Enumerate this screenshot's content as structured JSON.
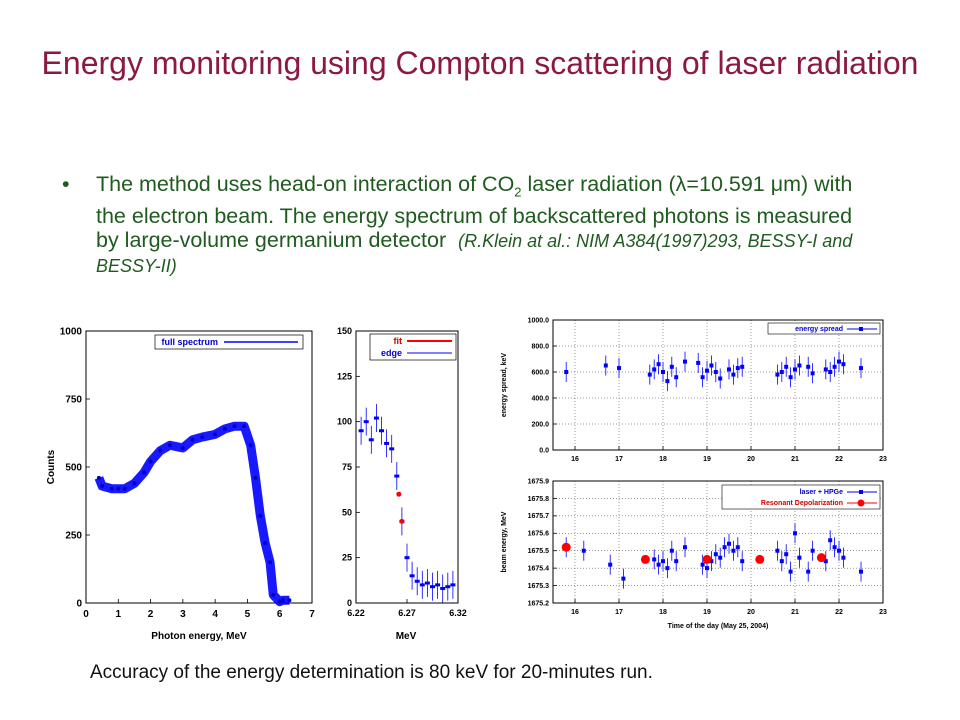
{
  "title": "Energy monitoring using Compton scattering of laser radiation",
  "bullet": {
    "marker": "•",
    "text_before_sub": "The method uses head-on interaction of CO",
    "sub": "2",
    "text_after_sub": " laser radiation (λ=10.591 μm) with the electron beam. The energy spectrum of backscattered photons is measured by large-volume germanium detector",
    "reference": "(R.Klein at al.: NIM A384(1997)293, BESSY-I and BESSY-II)"
  },
  "caption": "Accuracy of the energy determination is 80 keV for 20-minutes run.",
  "chart_data": [
    {
      "type": "line",
      "xlabel": "Photon energy, MeV",
      "ylabel": "Counts",
      "xlim": [
        0,
        7
      ],
      "ylim": [
        0,
        1000
      ],
      "x_ticks": [
        "0",
        "1",
        "2",
        "3",
        "4",
        "5",
        "6",
        "7"
      ],
      "y_ticks": [
        "0",
        "250",
        "500",
        "750",
        "1000"
      ],
      "legend": "full spectrum",
      "legend_position": "top-right",
      "series": [
        {
          "name": "full spectrum",
          "x": [
            0.4,
            0.5,
            0.8,
            1.0,
            1.2,
            1.5,
            1.8,
            2.0,
            2.3,
            2.6,
            3.0,
            3.3,
            3.6,
            4.0,
            4.3,
            4.6,
            4.9,
            5.1,
            5.25,
            5.4,
            5.55,
            5.7,
            5.8,
            6.0,
            6.1,
            6.3
          ],
          "y": [
            460,
            430,
            420,
            420,
            420,
            440,
            480,
            520,
            560,
            580,
            570,
            600,
            610,
            620,
            640,
            650,
            650,
            580,
            460,
            320,
            220,
            150,
            30,
            5,
            10,
            10
          ]
        }
      ]
    },
    {
      "type": "scatter",
      "xlabel": "MeV",
      "xlim": [
        6.22,
        6.32
      ],
      "ylim": [
        0,
        150
      ],
      "x_ticks": [
        "6.22",
        "6.27",
        "6.32"
      ],
      "y_ticks": [
        "0",
        "25",
        "50",
        "75",
        "100",
        "125",
        "150"
      ],
      "legend": [
        "fit",
        "edge"
      ],
      "legend_position": "top-right",
      "series": [
        {
          "name": "edge",
          "x": [
            6.225,
            6.23,
            6.235,
            6.24,
            6.245,
            6.25,
            6.255,
            6.26,
            6.265,
            6.27,
            6.275,
            6.28,
            6.285,
            6.29,
            6.295,
            6.3,
            6.305,
            6.31,
            6.315
          ],
          "y": [
            95,
            100,
            90,
            102,
            95,
            88,
            85,
            70,
            45,
            25,
            15,
            12,
            10,
            11,
            9,
            10,
            8,
            9,
            10
          ]
        },
        {
          "name": "fit",
          "x": [
            6.262,
            6.265
          ],
          "y": [
            60,
            45
          ]
        }
      ]
    },
    {
      "type": "scatter",
      "ylabel": "energy spread, keV",
      "xlim": [
        15.5,
        23
      ],
      "ylim": [
        0,
        1000
      ],
      "x_ticks": [
        "16",
        "17",
        "18",
        "19",
        "20",
        "21",
        "22",
        "23"
      ],
      "y_ticks": [
        "0.0",
        "200.0",
        "400.0",
        "600.0",
        "800.0",
        "1000.0"
      ],
      "legend": "energy spread",
      "legend_position": "top-right",
      "series": [
        {
          "name": "energy spread",
          "x": [
            15.8,
            16.7,
            17.0,
            17.7,
            17.8,
            17.9,
            18.0,
            18.1,
            18.2,
            18.3,
            18.5,
            18.8,
            18.9,
            19.0,
            19.1,
            19.2,
            19.3,
            19.5,
            19.6,
            19.7,
            19.8,
            20.6,
            20.7,
            20.8,
            20.9,
            21.0,
            21.1,
            21.3,
            21.4,
            21.7,
            21.8,
            21.9,
            22.0,
            22.1,
            22.5
          ],
          "y": [
            600,
            650,
            630,
            580,
            620,
            660,
            600,
            530,
            640,
            560,
            680,
            670,
            560,
            610,
            650,
            600,
            550,
            620,
            580,
            630,
            640,
            580,
            600,
            640,
            560,
            620,
            650,
            640,
            590,
            620,
            600,
            640,
            680,
            660,
            630
          ]
        }
      ]
    },
    {
      "type": "scatter",
      "xlabel": "Time of the day (May 25, 2004)",
      "ylabel": "beam energy, MeV",
      "xlim": [
        15.5,
        23
      ],
      "ylim": [
        1675.2,
        1675.9
      ],
      "x_ticks": [
        "16",
        "17",
        "18",
        "19",
        "20",
        "21",
        "22",
        "23"
      ],
      "y_ticks": [
        "1675.2",
        "1675.3",
        "1675.4",
        "1675.5",
        "1675.6",
        "1675.7",
        "1675.8",
        "1675.9"
      ],
      "legend": [
        "laser + HPGe",
        "Resonant Depolarization"
      ],
      "legend_position": "top-right",
      "series": [
        {
          "name": "laser + HPGe",
          "x": [
            15.8,
            16.2,
            16.8,
            17.1,
            17.8,
            17.9,
            18.0,
            18.1,
            18.2,
            18.3,
            18.5,
            18.9,
            19.0,
            19.1,
            19.2,
            19.3,
            19.4,
            19.5,
            19.6,
            19.7,
            19.8,
            20.6,
            20.7,
            20.8,
            20.9,
            21.0,
            21.1,
            21.3,
            21.4,
            21.7,
            21.8,
            21.9,
            22.0,
            22.1,
            22.5
          ],
          "y": [
            1675.52,
            1675.5,
            1675.42,
            1675.34,
            1675.45,
            1675.42,
            1675.44,
            1675.4,
            1675.5,
            1675.44,
            1675.52,
            1675.42,
            1675.4,
            1675.44,
            1675.48,
            1675.46,
            1675.52,
            1675.54,
            1675.5,
            1675.52,
            1675.44,
            1675.5,
            1675.44,
            1675.48,
            1675.38,
            1675.6,
            1675.46,
            1675.38,
            1675.5,
            1675.44,
            1675.56,
            1675.52,
            1675.5,
            1675.46,
            1675.38
          ]
        },
        {
          "name": "Resonant Depolarization",
          "x": [
            15.8,
            17.6,
            19.0,
            20.2,
            21.6
          ],
          "y": [
            1675.52,
            1675.45,
            1675.45,
            1675.45,
            1675.46
          ]
        }
      ]
    }
  ]
}
